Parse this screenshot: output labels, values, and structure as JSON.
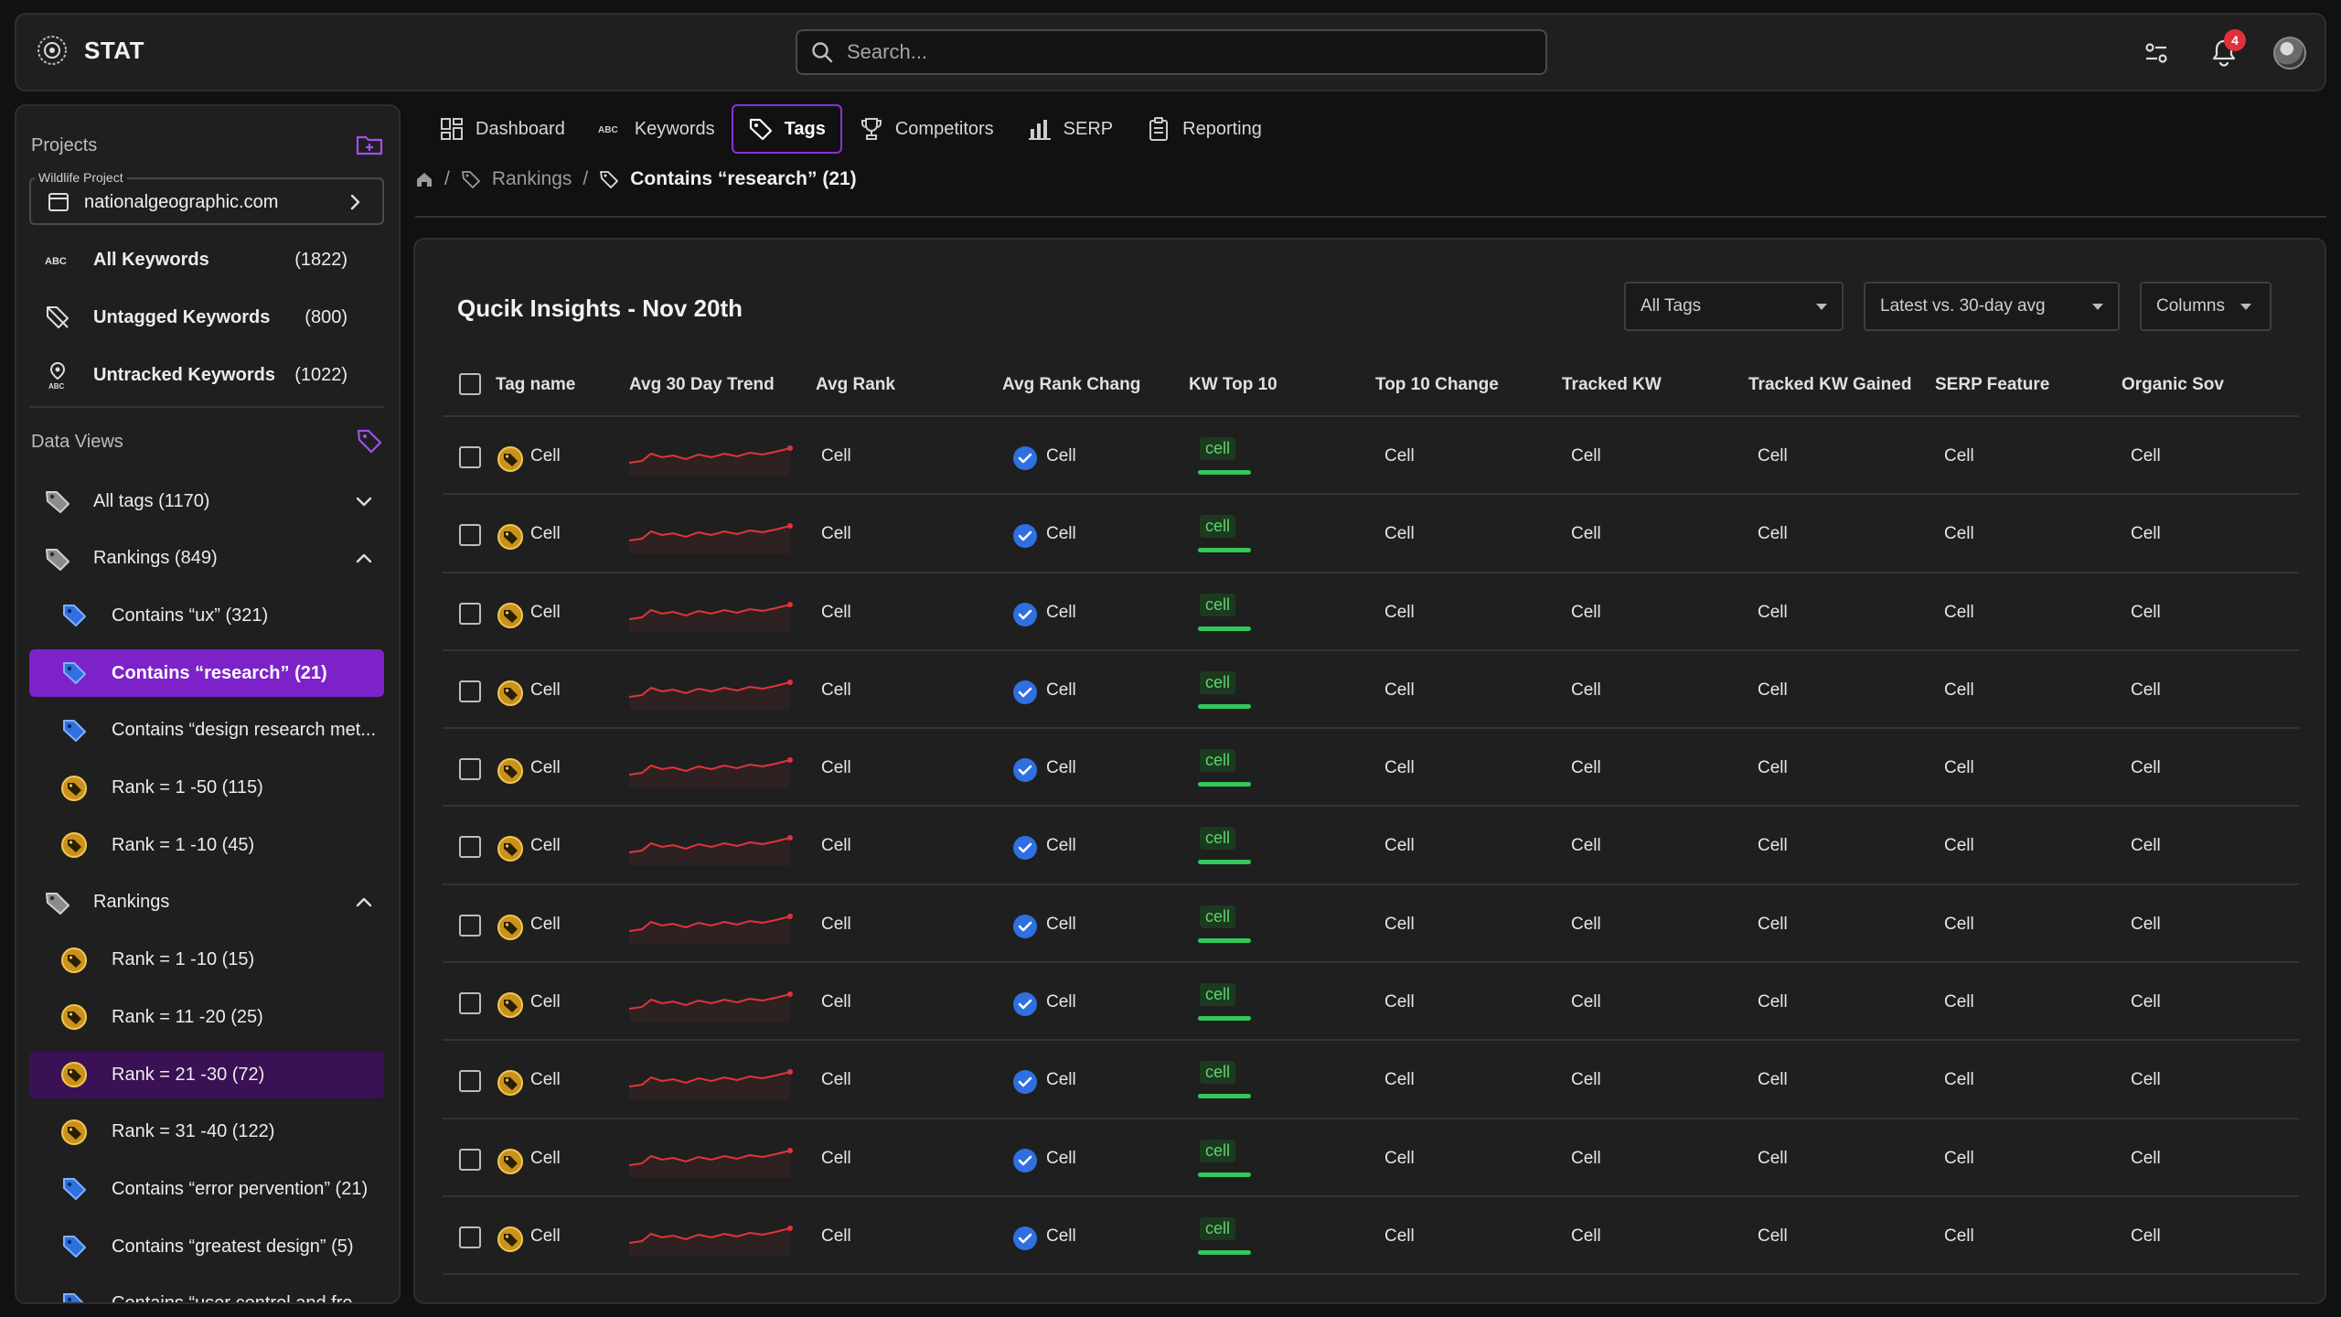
{
  "app": {
    "name": "STAT"
  },
  "search": {
    "placeholder": "Search..."
  },
  "header": {
    "notification_count": "4"
  },
  "sidebar": {
    "projects_label": "Projects",
    "project": {
      "label": "Wildlife Project",
      "name": "nationalgeographic.com"
    },
    "keyword_items": [
      {
        "label": "All Keywords",
        "count": "(1822)",
        "icon": "abc-icon"
      },
      {
        "label": "Untagged Keywords",
        "count": "(800)",
        "icon": "untagged-icon"
      },
      {
        "label": "Untracked Keywords",
        "count": "(1022)",
        "icon": "untracked-icon"
      }
    ],
    "data_views_label": "Data Views",
    "views": [
      {
        "label": "All tags (1170)",
        "type": "group",
        "chevron": "down"
      },
      {
        "label": "Rankings (849)",
        "type": "group",
        "chevron": "up"
      },
      {
        "label": "Contains “ux” (321)",
        "type": "tag-blue"
      },
      {
        "label": "Contains “research” (21)",
        "type": "tag-blue",
        "state": "active"
      },
      {
        "label": "Contains “design research met...",
        "type": "tag-blue"
      },
      {
        "label": "Rank = 1 -50 (115)",
        "type": "tag-gold"
      },
      {
        "label": "Rank = 1 -10 (45)",
        "type": "tag-gold"
      },
      {
        "label": "Rankings",
        "type": "group",
        "chevron": "up"
      },
      {
        "label": "Rank = 1 -10 (15)",
        "type": "tag-gold"
      },
      {
        "label": "Rank = 11 -20 (25)",
        "type": "tag-gold"
      },
      {
        "label": "Rank = 21 -30 (72)",
        "type": "tag-gold",
        "state": "highlight"
      },
      {
        "label": "Rank = 31 -40 (122)",
        "type": "tag-gold"
      },
      {
        "label": "Contains “error pervention” (21)",
        "type": "tag-blue"
      },
      {
        "label": "Contains “greatest design” (5)",
        "type": "tag-blue"
      },
      {
        "label": "Contains “user control and fre...",
        "type": "tag-blue"
      }
    ]
  },
  "tabs": [
    {
      "label": "Dashboard",
      "icon": "dashboard-icon"
    },
    {
      "label": "Keywords",
      "icon": "abc-icon"
    },
    {
      "label": "Tags",
      "icon": "tag-icon",
      "active": true
    },
    {
      "label": "Competitors",
      "icon": "trophy-icon"
    },
    {
      "label": "SERP",
      "icon": "bar-chart-icon"
    },
    {
      "label": "Reporting",
      "icon": "clipboard-icon"
    }
  ],
  "breadcrumb": {
    "sep": "/",
    "parent": "Rankings",
    "current": "Contains “research” (21)"
  },
  "panel": {
    "title": "Qucik Insights - Nov 20th",
    "filters": {
      "tags": "All Tags",
      "compare": "Latest vs. 30-day avg",
      "columns": "Columns"
    }
  },
  "table": {
    "columns": [
      "Tag name",
      "Avg 30 Day Trend",
      "Avg Rank",
      "Avg Rank Chang",
      "KW Top 10",
      "Top 10 Change",
      "Tracked KW",
      "Tracked KW Gained",
      "SERP Feature",
      "Organic Sov"
    ],
    "rows": [
      {
        "tag": "Cell",
        "avg_rank": "Cell",
        "rank_change": "Cell",
        "kw_top10": "cell",
        "top10_change": "Cell",
        "tracked": "Cell",
        "gained": "Cell",
        "serp": "Cell",
        "sov": "Cell"
      },
      {
        "tag": "Cell",
        "avg_rank": "Cell",
        "rank_change": "Cell",
        "kw_top10": "cell",
        "top10_change": "Cell",
        "tracked": "Cell",
        "gained": "Cell",
        "serp": "Cell",
        "sov": "Cell"
      },
      {
        "tag": "Cell",
        "avg_rank": "Cell",
        "rank_change": "Cell",
        "kw_top10": "cell",
        "top10_change": "Cell",
        "tracked": "Cell",
        "gained": "Cell",
        "serp": "Cell",
        "sov": "Cell"
      },
      {
        "tag": "Cell",
        "avg_rank": "Cell",
        "rank_change": "Cell",
        "kw_top10": "cell",
        "top10_change": "Cell",
        "tracked": "Cell",
        "gained": "Cell",
        "serp": "Cell",
        "sov": "Cell"
      },
      {
        "tag": "Cell",
        "avg_rank": "Cell",
        "rank_change": "Cell",
        "kw_top10": "cell",
        "top10_change": "Cell",
        "tracked": "Cell",
        "gained": "Cell",
        "serp": "Cell",
        "sov": "Cell"
      },
      {
        "tag": "Cell",
        "avg_rank": "Cell",
        "rank_change": "Cell",
        "kw_top10": "cell",
        "top10_change": "Cell",
        "tracked": "Cell",
        "gained": "Cell",
        "serp": "Cell",
        "sov": "Cell"
      },
      {
        "tag": "Cell",
        "avg_rank": "Cell",
        "rank_change": "Cell",
        "kw_top10": "cell",
        "top10_change": "Cell",
        "tracked": "Cell",
        "gained": "Cell",
        "serp": "Cell",
        "sov": "Cell"
      },
      {
        "tag": "Cell",
        "avg_rank": "Cell",
        "rank_change": "Cell",
        "kw_top10": "cell",
        "top10_change": "Cell",
        "tracked": "Cell",
        "gained": "Cell",
        "serp": "Cell",
        "sov": "Cell"
      },
      {
        "tag": "Cell",
        "avg_rank": "Cell",
        "rank_change": "Cell",
        "kw_top10": "cell",
        "top10_change": "Cell",
        "tracked": "Cell",
        "gained": "Cell",
        "serp": "Cell",
        "sov": "Cell"
      },
      {
        "tag": "Cell",
        "avg_rank": "Cell",
        "rank_change": "Cell",
        "kw_top10": "cell",
        "top10_change": "Cell",
        "tracked": "Cell",
        "gained": "Cell",
        "serp": "Cell",
        "sov": "Cell"
      },
      {
        "tag": "Cell",
        "avg_rank": "Cell",
        "rank_change": "Cell",
        "kw_top10": "cell",
        "top10_change": "Cell",
        "tracked": "Cell",
        "gained": "Cell",
        "serp": "Cell",
        "sov": "Cell"
      }
    ]
  },
  "colors": {
    "accent": "#7d22c9",
    "accent_dark": "#3a1155",
    "trend": "#e0343c",
    "check": "#2f6fe0",
    "pill": "#5fd36a"
  }
}
